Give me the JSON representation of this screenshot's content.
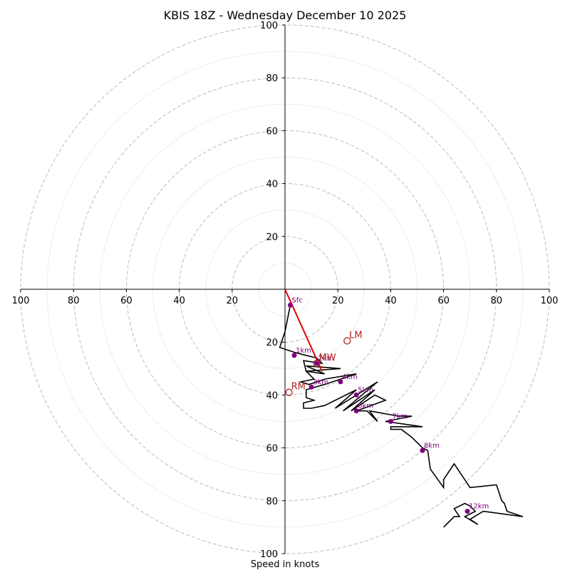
{
  "chart_data": {
    "type": "hodograph",
    "title": "KBIS 18Z - Wednesday December 10 2025",
    "xlabel": "Speed in knots",
    "units": "knots",
    "axis_range": [
      -100,
      100
    ],
    "ring_major": [
      20,
      40,
      60,
      80,
      100
    ],
    "ring_minor": [
      10,
      30,
      50,
      70,
      90
    ],
    "tick_labels": {
      "x_left": [
        "100",
        "80",
        "60",
        "40",
        "20"
      ],
      "x_right": [
        "20",
        "40",
        "60",
        "80",
        "100"
      ],
      "y_up": [
        "20",
        "40",
        "60",
        "80",
        "100"
      ],
      "y_down": [
        "20",
        "40",
        "60",
        "80",
        "100"
      ]
    },
    "colors": {
      "trace": "#000000",
      "height_marker": "#800080",
      "storm_motion": "#b22222",
      "mean_wind_vector": "#dd0000",
      "grid": "#bbbbbb"
    },
    "trace": [
      [
        2,
        -6
      ],
      [
        0,
        -16
      ],
      [
        -2,
        -22
      ],
      [
        4,
        -24
      ],
      [
        8,
        -25
      ],
      [
        12,
        -26
      ],
      [
        14,
        -28
      ],
      [
        7,
        -27
      ],
      [
        8,
        -31
      ],
      [
        15,
        -32
      ],
      [
        8,
        -29
      ],
      [
        21,
        -30
      ],
      [
        8,
        -31
      ],
      [
        11,
        -34
      ],
      [
        6,
        -35
      ],
      [
        9,
        -36
      ],
      [
        15,
        -34
      ],
      [
        27,
        -32
      ],
      [
        15,
        -36
      ],
      [
        8,
        -38
      ],
      [
        8,
        -41
      ],
      [
        11,
        -42
      ],
      [
        7,
        -43
      ],
      [
        7,
        -45
      ],
      [
        10,
        -45
      ],
      [
        15,
        -44
      ],
      [
        27,
        -38
      ],
      [
        19,
        -45
      ],
      [
        35,
        -35
      ],
      [
        22,
        -46
      ],
      [
        34,
        -38
      ],
      [
        25,
        -46
      ],
      [
        34,
        -40
      ],
      [
        38,
        -42
      ],
      [
        27,
        -46
      ],
      [
        31,
        -46
      ],
      [
        35,
        -50
      ],
      [
        32,
        -46
      ],
      [
        43,
        -48
      ],
      [
        48,
        -48
      ],
      [
        38,
        -50
      ],
      [
        45,
        -51
      ],
      [
        52,
        -52
      ],
      [
        40,
        -52
      ],
      [
        40,
        -53
      ],
      [
        44,
        -53
      ],
      [
        48,
        -56
      ],
      [
        50,
        -58
      ],
      [
        52,
        -60
      ],
      [
        54,
        -61
      ],
      [
        55,
        -68
      ],
      [
        60,
        -75
      ],
      [
        60,
        -72
      ],
      [
        64,
        -66
      ],
      [
        70,
        -75
      ],
      [
        80,
        -74
      ],
      [
        82,
        -80
      ],
      [
        83,
        -81
      ],
      [
        84,
        -84
      ],
      [
        90,
        -86
      ],
      [
        75,
        -84
      ],
      [
        70,
        -87
      ],
      [
        73,
        -89
      ],
      [
        68,
        -86
      ],
      [
        72,
        -84
      ],
      [
        70,
        -82
      ],
      [
        68,
        -81
      ],
      [
        64,
        -83
      ],
      [
        66,
        -86
      ],
      [
        64,
        -86
      ],
      [
        62,
        -88
      ],
      [
        60,
        -90
      ]
    ],
    "height_markers": [
      {
        "label": "Sfc",
        "u": 2,
        "v": -6
      },
      {
        "label": "1km",
        "u": 3.5,
        "v": -25
      },
      {
        "label": "2km",
        "u": 12,
        "v": -28
      },
      {
        "label": "3km",
        "u": 10,
        "v": -37
      },
      {
        "label": "4km",
        "u": 21,
        "v": -35
      },
      {
        "label": "5km",
        "u": 27,
        "v": -40
      },
      {
        "label": "6km",
        "u": 27,
        "v": -46
      },
      {
        "label": "7km",
        "u": 40,
        "v": -50
      },
      {
        "label": "8km",
        "u": 52,
        "v": -61
      },
      {
        "label": "12km",
        "u": 69,
        "v": -84
      }
    ],
    "storm_motion": [
      {
        "label": "LM",
        "u": 23.5,
        "v": -19.5
      },
      {
        "label": "MW",
        "u": 12,
        "v": -28
      },
      {
        "label": "RM",
        "u": 1.5,
        "v": -39
      }
    ],
    "mean_wind_vector": {
      "from": [
        0,
        0
      ],
      "to": [
        14,
        -31
      ]
    }
  }
}
